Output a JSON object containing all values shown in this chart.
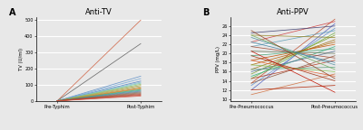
{
  "title_A": "Anti-TV",
  "title_B": "Anti-PPV",
  "label_A": "A",
  "label_B": "B",
  "xlabel_A1": "Pre-Typhim",
  "xlabel_A2": "Post-Typhim",
  "xlabel_B1": "Pre-Pneumococcus",
  "xlabel_B2": "Post-Pneumococcus",
  "ylabel_A": "TV (U/ml)",
  "ylabel_B": "PPV (mg/L)",
  "ylim_A": [
    0,
    520
  ],
  "ylim_B": [
    9.5,
    28
  ],
  "yticks_A": [
    0,
    100,
    200,
    300,
    400,
    500
  ],
  "yticks_B": [
    10,
    12,
    14,
    16,
    18,
    20,
    22,
    24,
    26
  ],
  "fig_bg": "#e8e8e8",
  "plot_bg": "#e8e8e8",
  "grid_color": "#ffffff",
  "lines_A": [
    {
      "pre": 3,
      "post": 500,
      "color": "#d06040"
    },
    {
      "pre": 3,
      "post": 355,
      "color": "#606060"
    },
    {
      "pre": 3,
      "post": 155,
      "color": "#6090c8"
    },
    {
      "pre": 3,
      "post": 140,
      "color": "#70a8d8"
    },
    {
      "pre": 3,
      "post": 125,
      "color": "#5080c0"
    },
    {
      "pre": 3,
      "post": 118,
      "color": "#80b8d0"
    },
    {
      "pre": 3,
      "post": 112,
      "color": "#70c8b0"
    },
    {
      "pre": 3,
      "post": 105,
      "color": "#90b860"
    },
    {
      "pre": 3,
      "post": 98,
      "color": "#a0a848"
    },
    {
      "pre": 3,
      "post": 90,
      "color": "#b09838"
    },
    {
      "pre": 3,
      "post": 83,
      "color": "#c08828"
    },
    {
      "pre": 3,
      "post": 78,
      "color": "#d07818"
    },
    {
      "pre": 3,
      "post": 73,
      "color": "#30b090"
    },
    {
      "pre": 3,
      "post": 68,
      "color": "#40a080"
    },
    {
      "pre": 3,
      "post": 63,
      "color": "#5878b0"
    },
    {
      "pre": 3,
      "post": 58,
      "color": "#687868"
    },
    {
      "pre": 3,
      "post": 53,
      "color": "#906048"
    },
    {
      "pre": 3,
      "post": 48,
      "color": "#a05038"
    },
    {
      "pre": 3,
      "post": 43,
      "color": "#b04028"
    },
    {
      "pre": 3,
      "post": 38,
      "color": "#c03018"
    },
    {
      "pre": 3,
      "post": 33,
      "color": "#d05848"
    }
  ],
  "lines_B": [
    {
      "pre": 13.5,
      "post": 27.5,
      "color": "#c05030"
    },
    {
      "pre": 22.5,
      "post": 27.0,
      "color": "#d04040"
    },
    {
      "pre": 12.0,
      "post": 26.5,
      "color": "#5060c0"
    },
    {
      "pre": 24.5,
      "post": 26.0,
      "color": "#404070"
    },
    {
      "pre": 13.0,
      "post": 25.5,
      "color": "#6090d0"
    },
    {
      "pre": 21.5,
      "post": 25.0,
      "color": "#60a0b8"
    },
    {
      "pre": 14.5,
      "post": 24.5,
      "color": "#70b040"
    },
    {
      "pre": 15.5,
      "post": 24.0,
      "color": "#80a030"
    },
    {
      "pre": 24.0,
      "post": 23.5,
      "color": "#908020"
    },
    {
      "pre": 16.5,
      "post": 23.0,
      "color": "#a07010"
    },
    {
      "pre": 17.5,
      "post": 22.5,
      "color": "#b06000"
    },
    {
      "pre": 18.5,
      "post": 22.0,
      "color": "#c05000"
    },
    {
      "pre": 15.0,
      "post": 21.5,
      "color": "#30b080"
    },
    {
      "pre": 19.5,
      "post": 21.0,
      "color": "#40a070"
    },
    {
      "pre": 16.0,
      "post": 20.5,
      "color": "#506890"
    },
    {
      "pre": 20.5,
      "post": 20.0,
      "color": "#607050"
    },
    {
      "pre": 13.5,
      "post": 19.5,
      "color": "#905840"
    },
    {
      "pre": 21.5,
      "post": 19.0,
      "color": "#a04830"
    },
    {
      "pre": 14.5,
      "post": 18.5,
      "color": "#b03820"
    },
    {
      "pre": 22.5,
      "post": 18.0,
      "color": "#4080a0"
    },
    {
      "pre": 23.5,
      "post": 17.5,
      "color": "#5090a0"
    },
    {
      "pre": 16.5,
      "post": 17.0,
      "color": "#60a080"
    },
    {
      "pre": 24.0,
      "post": 16.5,
      "color": "#70b060"
    },
    {
      "pre": 17.5,
      "post": 16.0,
      "color": "#80c050"
    },
    {
      "pre": 11.0,
      "post": 15.5,
      "color": "#d07040"
    },
    {
      "pre": 18.5,
      "post": 15.0,
      "color": "#e06030"
    },
    {
      "pre": 25.0,
      "post": 14.5,
      "color": "#904020"
    },
    {
      "pre": 19.5,
      "post": 14.0,
      "color": "#a03010"
    },
    {
      "pre": 12.0,
      "post": 13.0,
      "color": "#b02000"
    },
    {
      "pre": 20.5,
      "post": 11.5,
      "color": "#c01000"
    }
  ]
}
